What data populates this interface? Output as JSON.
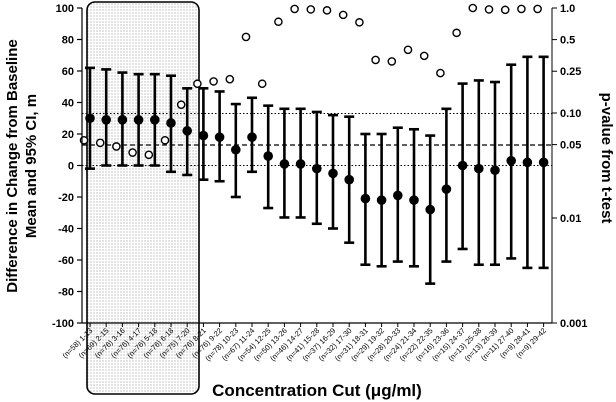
{
  "chart_data": {
    "type": "scatter",
    "xlabel": "Concentration Cut (μg/ml)",
    "ylabel_line1": "Difference in Change from Baseline",
    "ylabel_line2": "Mean and 95% CI, m",
    "y2label": "p-value from t-test",
    "ylim": [
      -100,
      100
    ],
    "yticks": [
      100,
      80,
      60,
      40,
      20,
      0,
      -20,
      -40,
      -60,
      -80,
      -100
    ],
    "y2lim": [
      0.001,
      1.0
    ],
    "y2scale": "log",
    "y2ticks": [
      1.0,
      0.5,
      0.25,
      0.1,
      0.05,
      0.01,
      0.001
    ],
    "y2tick_labels": [
      "1.0",
      "0.5",
      "0.25",
      "0.10",
      "0.05",
      "0.01",
      "0.001"
    ],
    "hlines": [
      {
        "y": 33,
        "style": "dotted"
      },
      {
        "y": 13,
        "style": "dashed"
      },
      {
        "y": 0,
        "style": "dotted"
      }
    ],
    "highlight_range": {
      "from_index": 0,
      "to_index": 5,
      "fill": "dotted"
    },
    "categories": [
      "(n=58) 1-13",
      "(n=69) 2-15",
      "(n=76) 3-16",
      "(n=76) 4-17",
      "(n=76) 5-18",
      "(n=76) 6-18",
      "(n=75) 7-20",
      "(n=76) 8-21",
      "(n=76) 9-22",
      "(n=78) 10-23",
      "(n=67) 11-24",
      "(n=54) 12-25",
      "(n=50) 13-26",
      "(n=46) 14-27",
      "(n=41) 15-28",
      "(n=37) 16-29",
      "(n=32) 17-30",
      "(n=31) 18-31",
      "(n=29) 19-32",
      "(n=28) 20-33",
      "(n=24) 21-34",
      "(n=22) 22-35",
      "(n=16) 23-36",
      "(n=15) 24-37",
      "(n=13) 25-38",
      "(n=13) 26-39",
      "(n=11) 27-40",
      "(n=9) 28-41",
      "(n=9) 29-42"
    ],
    "series": [
      {
        "marker": "filled-circle-errorbar",
        "mean": [
          30,
          29,
          29,
          29,
          29,
          27,
          22,
          19,
          18,
          10,
          18,
          6,
          1,
          1,
          -2,
          -5,
          -9,
          -21,
          -22,
          -19,
          -22,
          -28,
          -15,
          0,
          -2,
          -3,
          3,
          2,
          2
        ],
        "lower": [
          -2,
          0,
          0,
          0,
          0,
          -4,
          -6,
          -9,
          -10,
          -20,
          -4,
          -27,
          -33,
          -33,
          -37,
          -40,
          -49,
          -63,
          -64,
          -61,
          -64,
          -75,
          -61,
          -53,
          -63,
          -63,
          -59,
          -65,
          -65
        ],
        "upper": [
          62,
          61,
          59,
          58,
          58,
          57,
          49,
          49,
          47,
          39,
          43,
          38,
          36,
          36,
          34,
          32,
          31,
          20,
          20,
          24,
          23,
          19,
          36,
          52,
          54,
          53,
          64,
          69,
          69
        ]
      },
      {
        "marker": "open-circle",
        "axis": "right",
        "values": [
          0.055,
          0.052,
          0.048,
          0.042,
          0.04,
          0.055,
          0.12,
          0.19,
          0.2,
          0.21,
          0.53,
          0.19,
          0.74,
          0.98,
          0.97,
          0.95,
          0.86,
          0.73,
          0.32,
          0.31,
          0.4,
          0.35,
          0.24,
          0.58,
          1.0,
          0.97,
          0.96,
          0.98,
          0.98
        ]
      }
    ]
  }
}
